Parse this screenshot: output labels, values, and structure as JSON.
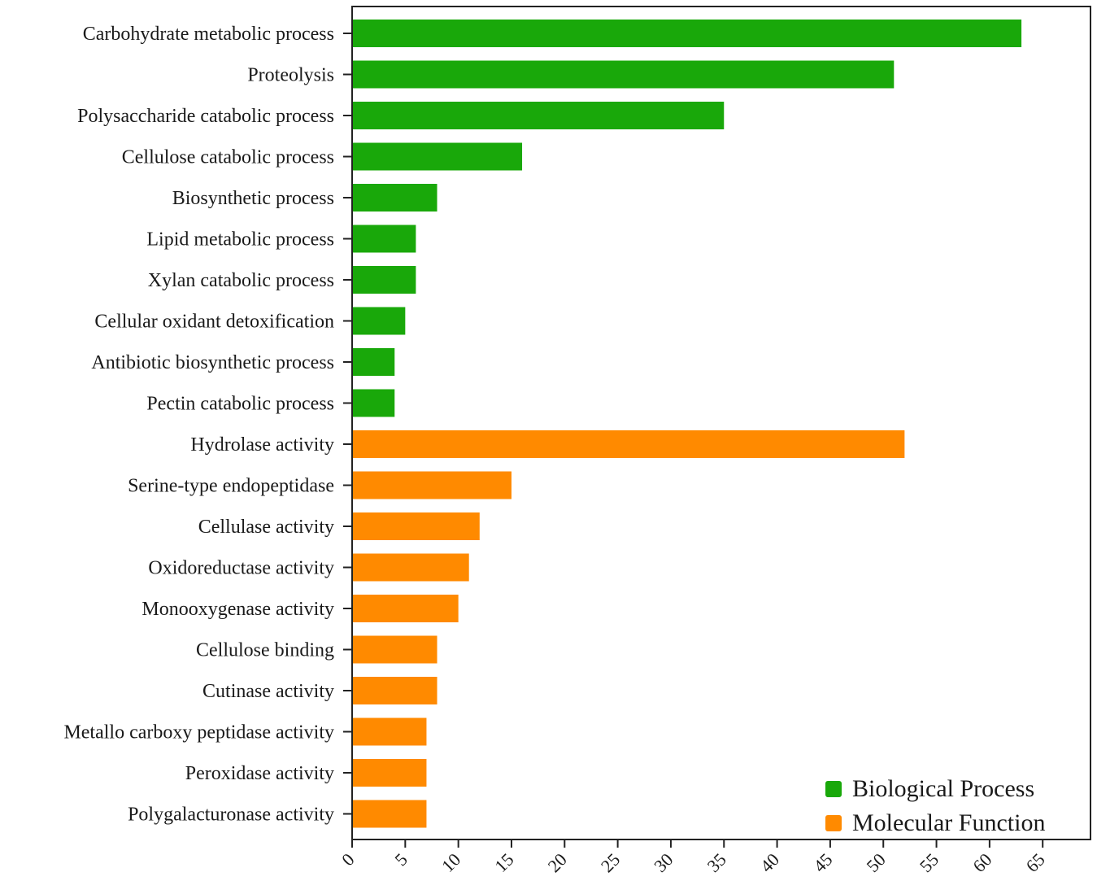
{
  "chart_data": {
    "type": "bar",
    "orientation": "horizontal",
    "categories": [
      "Carbohydrate metabolic process",
      "Proteolysis",
      "Polysaccharide catabolic process",
      "Cellulose catabolic process",
      "Biosynthetic process",
      "Lipid metabolic process",
      "Xylan catabolic process",
      "Cellular oxidant detoxification",
      "Antibiotic biosynthetic process",
      "Pectin catabolic process",
      "Hydrolase activity",
      "Serine-type endopeptidase",
      "Cellulase activity",
      "Oxidoreductase activity",
      "Monooxygenase activity",
      "Cellulose binding",
      "Cutinase activity",
      "Metallo carboxy peptidase activity",
      "Peroxidase activity",
      "Polygalacturonase activity"
    ],
    "values": [
      63,
      51,
      35,
      16,
      8,
      6,
      6,
      5,
      4,
      4,
      52,
      15,
      12,
      11,
      10,
      8,
      8,
      7,
      7,
      7
    ],
    "groups": [
      "Biological Process",
      "Biological Process",
      "Biological Process",
      "Biological Process",
      "Biological Process",
      "Biological Process",
      "Biological Process",
      "Biological Process",
      "Biological Process",
      "Biological Process",
      "Molecular Function",
      "Molecular Function",
      "Molecular Function",
      "Molecular Function",
      "Molecular Function",
      "Molecular Function",
      "Molecular Function",
      "Molecular Function",
      "Molecular Function",
      "Molecular Function"
    ],
    "legend": [
      {
        "name": "Biological Process",
        "color": "#19a80a"
      },
      {
        "name": "Molecular Function",
        "color": "#ff8a00"
      }
    ],
    "legend_position": "bottom-right",
    "x_ticks": [
      "0",
      "5",
      "10",
      "15",
      "20",
      "25",
      "30",
      "35",
      "40",
      "45",
      "50",
      "55",
      "60",
      "65"
    ],
    "xlim": [
      0,
      69.5
    ],
    "grid": false
  }
}
